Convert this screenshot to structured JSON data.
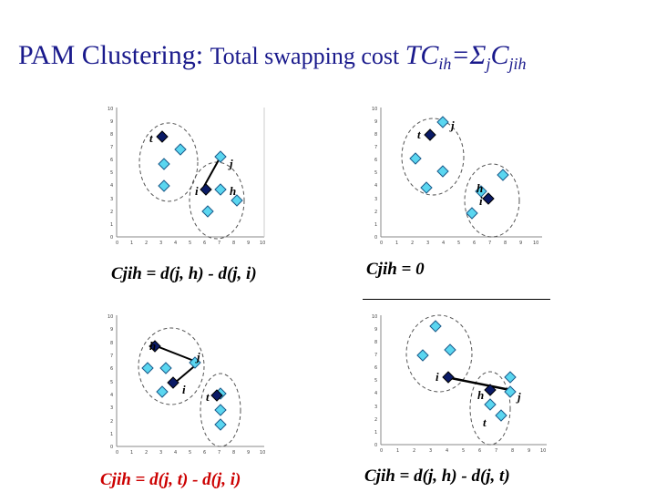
{
  "title": {
    "main": "PAM Clustering: ",
    "sub": "Total swapping cost ",
    "tc": "TC",
    "tc_sub": "ih",
    "eq": "=",
    "sum": "Σ",
    "sum_sub": "j",
    "c": "C",
    "c_sub": "jih"
  },
  "panels": [
    {
      "axis_y_ticks": [
        "0",
        "1",
        "2",
        "3",
        "4",
        "5",
        "6",
        "7",
        "8",
        "9",
        "10"
      ],
      "axis_x_ticks": [
        "0",
        "1",
        "2",
        "3",
        "4",
        "5",
        "6",
        "7",
        "8",
        "9",
        "10"
      ],
      "labels": {
        "t": "t",
        "i": "i",
        "j": "j",
        "h": "h"
      },
      "formula": "Cjih = d(j, h) - d(j, i)"
    },
    {
      "axis_y_ticks": [
        "0",
        "1",
        "2",
        "3",
        "4",
        "5",
        "6",
        "7",
        "8",
        "9",
        "10"
      ],
      "axis_x_ticks": [
        "0",
        "1",
        "2",
        "3",
        "4",
        "5",
        "6",
        "7",
        "8",
        "9",
        "10"
      ],
      "labels": {
        "t": "t",
        "i": "i",
        "j": "j",
        "h": "h"
      },
      "formula": "Cjih = 0"
    },
    {
      "axis_y_ticks": [
        "0",
        "1",
        "2",
        "3",
        "4",
        "5",
        "6",
        "7",
        "8",
        "9",
        "10"
      ],
      "axis_x_ticks": [
        "0",
        "1",
        "2",
        "3",
        "4",
        "5",
        "6",
        "7",
        "8",
        "9",
        "10"
      ],
      "labels": {
        "t": "t",
        "i": "i",
        "j": "j",
        "h": "h"
      },
      "formula": "Cjih = d(j, t) - d(j, i)"
    },
    {
      "axis_y_ticks": [
        "0",
        "1",
        "2",
        "3",
        "4",
        "5",
        "6",
        "7",
        "8",
        "9",
        "10"
      ],
      "axis_x_ticks": [
        "0",
        "1",
        "2",
        "3",
        "4",
        "5",
        "6",
        "7",
        "8",
        "9",
        "10"
      ],
      "labels": {
        "t": "t",
        "i": "i",
        "j": "j",
        "h": "h"
      },
      "formula": "Cjih = d(j, h) - d(j, t)"
    }
  ],
  "colors": {
    "title": "#1a1a8c",
    "object": "#5ad6f0",
    "medoid": "#0a1a66",
    "red_formula": "#cc0000"
  }
}
